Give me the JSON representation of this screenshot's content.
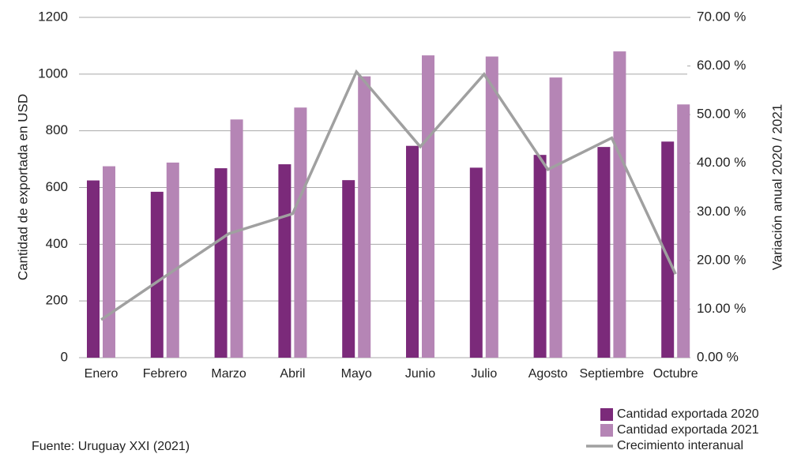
{
  "chart_data": {
    "type": "bar",
    "y_label": "Cantidad de exportada en USD",
    "y2_label": "Variación anual 2020 / 2021",
    "source": "Fuente: Uruguay XXI (2021)",
    "categories": [
      "Enero",
      "Febrero",
      "Marzo",
      "Abril",
      "Mayo",
      "Junio",
      "Julio",
      "Agosto",
      "Septiembre",
      "Octubre"
    ],
    "series": [
      {
        "name": "Cantidad exportada 2020",
        "color": "#7b2a7a",
        "type": "bar",
        "values": [
          625,
          585,
          668,
          682,
          626,
          747,
          670,
          715,
          743,
          762
        ]
      },
      {
        "name": "Cantidad exportada 2021",
        "color": "#b585b5",
        "type": "bar",
        "values": [
          675,
          688,
          840,
          882,
          992,
          1066,
          1062,
          988,
          1080,
          893
        ]
      },
      {
        "name": "Crecimiento interanual",
        "color": "#a0a0a0",
        "type": "line",
        "axis": "y2",
        "values": [
          7.8,
          16.7,
          25.5,
          29.6,
          58.8,
          43.4,
          58.3,
          38.7,
          45.2,
          17.2
        ]
      }
    ],
    "ylim": [
      0,
      1200
    ],
    "yticks": [
      0,
      200,
      400,
      600,
      800,
      1000,
      1200
    ],
    "y2lim": [
      0,
      70
    ],
    "y2ticks": [
      {
        "value": 0,
        "label": "0.00 %"
      },
      {
        "value": 10,
        "label": "10.00 %"
      },
      {
        "value": 20,
        "label": "20.00 %"
      },
      {
        "value": 30,
        "label": "30.00 %"
      },
      {
        "value": 40,
        "label": "40.00 %"
      },
      {
        "value": 50,
        "label": "50.00 %"
      },
      {
        "value": 60,
        "label": "60.00 %"
      },
      {
        "value": 70,
        "label": "70.00 %"
      }
    ],
    "grid": true,
    "legend": "bottom-right"
  }
}
